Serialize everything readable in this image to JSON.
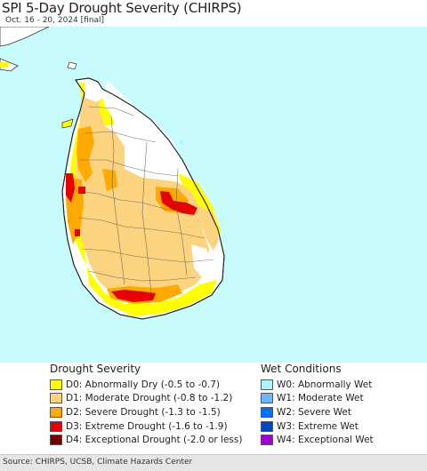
{
  "header": {
    "title": "SPI 5-Day Drought Severity (CHIRPS)",
    "subtitle": "Oct. 16 - 20, 2024 [final]"
  },
  "colors": {
    "ocean": "#c8fcfc",
    "land_normal": "#ffffff",
    "D0": "#ffff00",
    "D1": "#fcd37f",
    "D2": "#ffaa00",
    "D3": "#e60000",
    "D4": "#730000",
    "W0": "#aaf5ff",
    "W1": "#6fb7ff",
    "W2": "#0070ff",
    "W3": "#0046bc",
    "W4": "#a300d6"
  },
  "legend": {
    "drought": {
      "heading": "Drought Severity",
      "items": [
        {
          "code": "D0",
          "label": "D0: Abnormally Dry (-0.5 to -0.7)",
          "color": "#ffff00"
        },
        {
          "code": "D1",
          "label": "D1: Moderate Drought (-0.8 to -1.2)",
          "color": "#fcd37f"
        },
        {
          "code": "D2",
          "label": "D2: Severe Drought (-1.3 to -1.5)",
          "color": "#ffaa00"
        },
        {
          "code": "D3",
          "label": "D3: Extreme Drought (-1.6 to -1.9)",
          "color": "#e60000"
        },
        {
          "code": "D4",
          "label": "D4: Exceptional Drought (-2.0 or less)",
          "color": "#730000"
        }
      ]
    },
    "wet": {
      "heading": "Wet Conditions",
      "items": [
        {
          "code": "W0",
          "label": "W0: Abnormally Wet",
          "color": "#aaf5ff"
        },
        {
          "code": "W1",
          "label": "W1: Moderate Wet",
          "color": "#6fb7ff"
        },
        {
          "code": "W2",
          "label": "W2: Severe Wet",
          "color": "#0070ff"
        },
        {
          "code": "W3",
          "label": "W3: Extreme Wet",
          "color": "#0046bc"
        },
        {
          "code": "W4",
          "label": "W4: Exceptional Wet",
          "color": "#a300d6"
        }
      ]
    }
  },
  "footer": {
    "source": "Source: CHIRPS, UCSB, Climate Hazards Center"
  }
}
